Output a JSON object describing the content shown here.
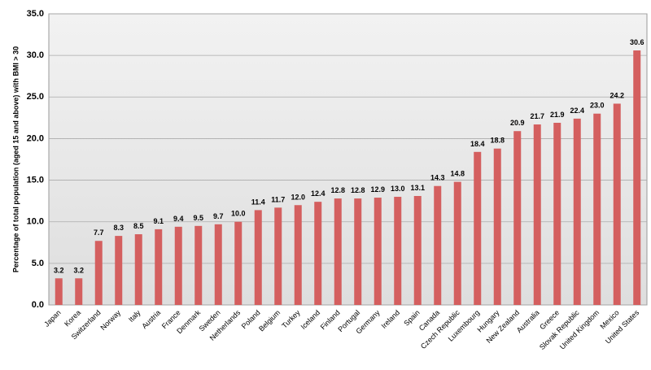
{
  "chart_data": {
    "type": "bar",
    "y_label": "Percentage of total population (aged 15 and above) with BMI > 30",
    "categories": [
      "Japan",
      "Korea",
      "Switzerland",
      "Norway",
      "Italy",
      "Austria",
      "France",
      "Denmark",
      "Sweden",
      "Netherlands",
      "Poland",
      "Belgium",
      "Turkey",
      "Iceland",
      "Finland",
      "Portugal",
      "Germany",
      "Ireland",
      "Spain",
      "Canada",
      "Czech Republic",
      "Luxembourg",
      "Hungary",
      "New Zealand",
      "Australia",
      "Greece",
      "Slovak Republic",
      "United Kingdom",
      "Mexico",
      "United States"
    ],
    "values": [
      3.2,
      3.2,
      7.7,
      8.3,
      8.5,
      9.1,
      9.4,
      9.5,
      9.7,
      10.0,
      11.4,
      11.7,
      12.0,
      12.4,
      12.8,
      12.8,
      12.9,
      13.0,
      13.1,
      14.3,
      14.8,
      18.4,
      18.8,
      20.9,
      21.7,
      21.9,
      22.4,
      23.0,
      24.2,
      30.6
    ],
    "value_labels": [
      "3.2",
      "3.2",
      "7.7",
      "8.3",
      "8.5",
      "9.1",
      "9.4",
      "9.5",
      "9.7",
      "10.0",
      "11.4",
      "11.7",
      "12.0",
      "12.4",
      "12.8",
      "12.8",
      "12.9",
      "13.0",
      "13.1",
      "14.3",
      "14.8",
      "18.4",
      "18.8",
      "20.9",
      "21.7",
      "21.9",
      "22.4",
      "23.0",
      "24.2",
      "30.6"
    ],
    "color": "#d45f5f",
    "ylim": [
      0,
      35
    ],
    "yticks": [
      {
        "value": 0,
        "label": "0.0"
      },
      {
        "value": 5,
        "label": "5.0"
      },
      {
        "value": 10,
        "label": "10.0"
      },
      {
        "value": 15,
        "label": "15.0"
      },
      {
        "value": 20,
        "label": "20.0"
      },
      {
        "value": 25,
        "label": "25.0"
      },
      {
        "value": 30,
        "label": "30.0"
      },
      {
        "value": 35,
        "label": "35.0"
      }
    ],
    "grid": true
  }
}
